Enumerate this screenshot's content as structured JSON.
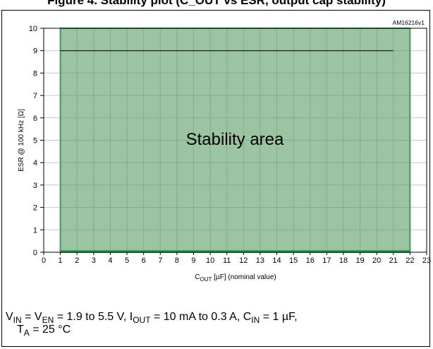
{
  "heading": "Figure 4. Stability plot (C_OUT vs ESR, output cap stability)",
  "figure_id": "AM16216v1",
  "chart_data": {
    "type": "area",
    "title": "",
    "region_label": "Stability area",
    "region": {
      "x": [
        1,
        22
      ],
      "y": [
        0,
        10
      ]
    },
    "boundary_line": {
      "x": [
        1,
        21
      ],
      "y": 9
    },
    "xlabel": "C",
    "xlabel_sub": "OUT",
    "xlabel_rest": " [µF] (nominal value)",
    "ylabel": "ESR @ 100 kHz [Ω]",
    "xlim": [
      0,
      23
    ],
    "ylim": [
      0,
      10
    ],
    "xticks": [
      0,
      1,
      2,
      3,
      4,
      5,
      6,
      7,
      8,
      9,
      10,
      11,
      12,
      13,
      14,
      15,
      16,
      17,
      18,
      19,
      20,
      21,
      22,
      23
    ],
    "yticks": [
      0,
      1,
      2,
      3,
      4,
      5,
      6,
      7,
      8,
      9,
      10
    ],
    "grid": true,
    "colors": {
      "area": "#9cc4a2",
      "area_edge": "#3a9a55",
      "line": "#000000",
      "grid": "#bfbfbf"
    }
  },
  "caption": {
    "line1": [
      {
        "t": "V"
      },
      {
        "sub": "IN"
      },
      {
        "t": " = V"
      },
      {
        "sub": "EN"
      },
      {
        "t": " = 1.9 to 5.5 V, I"
      },
      {
        "sub": "OUT"
      },
      {
        "t": " = 10 mA to 0.3 A, C"
      },
      {
        "sub": "IN"
      },
      {
        "t": " = 1 µF,"
      }
    ],
    "line2": [
      {
        "t": "T"
      },
      {
        "sub": "A"
      },
      {
        "t": " = 25 °C"
      }
    ]
  }
}
